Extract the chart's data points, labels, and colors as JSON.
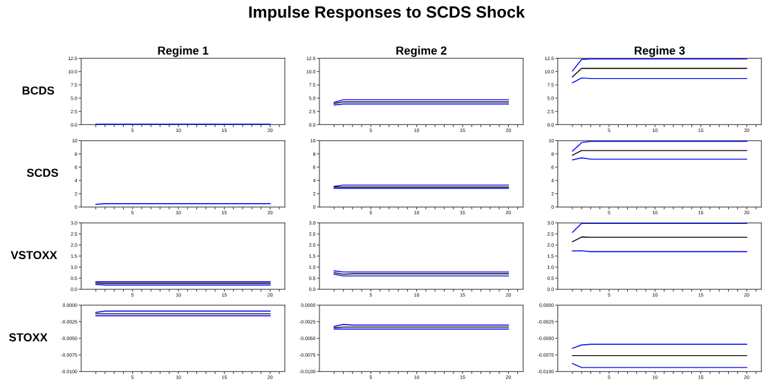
{
  "chart_data": [
    {
      "type": "line",
      "title": "Regime 1",
      "ylabel": "BCDS",
      "annotations": [
        "Impulse Responses to SCDS Shock"
      ],
      "x": [
        1,
        2,
        3,
        4,
        5,
        6,
        7,
        8,
        9,
        10,
        11,
        12,
        13,
        14,
        15,
        16,
        17,
        18,
        19,
        20
      ],
      "xlim": [
        -0.6,
        21.6
      ],
      "xticks": [
        {
          "value": 1,
          "label": null
        },
        {
          "value": 2,
          "label": null
        },
        {
          "value": 3,
          "label": null
        },
        {
          "value": 4,
          "label": null
        },
        5,
        {
          "value": 6,
          "label": null
        },
        {
          "value": 7,
          "label": null
        },
        {
          "value": 8,
          "label": null
        },
        {
          "value": 9,
          "label": null
        },
        10,
        {
          "value": 11,
          "label": null
        },
        {
          "value": 12,
          "label": null
        },
        {
          "value": 13,
          "label": null
        },
        {
          "value": 14,
          "label": null
        },
        15,
        {
          "value": 16,
          "label": null
        },
        {
          "value": 17,
          "label": null
        },
        {
          "value": 18,
          "label": null
        },
        {
          "value": 19,
          "label": null
        },
        20,
        {
          "value": 21,
          "label": null
        }
      ],
      "ylim": [
        0,
        12.5
      ],
      "yticks": [
        {
          "value": 0,
          "label": "0.0"
        },
        {
          "value": 2.5,
          "label": "2.5"
        },
        {
          "value": 5,
          "label": "5.0"
        },
        {
          "value": 7.5,
          "label": "7.5"
        },
        {
          "value": 10,
          "label": "10.0"
        },
        {
          "value": 12.5,
          "label": "12.5"
        }
      ],
      "line_style": "solid",
      "series": [
        {
          "color": "#0000ff",
          "values": [
            0.1,
            0.1,
            0.1,
            0.1,
            0.1,
            0.1,
            0.1,
            0.1,
            0.1,
            0.1,
            0.1,
            0.1,
            0.1,
            0.1,
            0.1,
            0.1,
            0.1,
            0.1,
            0.1,
            0.1
          ]
        }
      ]
    },
    {
      "type": "line",
      "title": "Regime 2",
      "x": [
        1,
        2,
        3,
        4,
        5,
        6,
        7,
        8,
        9,
        10,
        11,
        12,
        13,
        14,
        15,
        16,
        17,
        18,
        19,
        20
      ],
      "xlim": [
        -0.6,
        21.6
      ],
      "xticks": [
        {
          "value": 1,
          "label": null
        },
        {
          "value": 2,
          "label": null
        },
        {
          "value": 3,
          "label": null
        },
        {
          "value": 4,
          "label": null
        },
        5,
        {
          "value": 6,
          "label": null
        },
        {
          "value": 7,
          "label": null
        },
        {
          "value": 8,
          "label": null
        },
        {
          "value": 9,
          "label": null
        },
        10,
        {
          "value": 11,
          "label": null
        },
        {
          "value": 12,
          "label": null
        },
        {
          "value": 13,
          "label": null
        },
        {
          "value": 14,
          "label": null
        },
        15,
        {
          "value": 16,
          "label": null
        },
        {
          "value": 17,
          "label": null
        },
        {
          "value": 18,
          "label": null
        },
        {
          "value": 19,
          "label": null
        },
        20,
        {
          "value": 21,
          "label": null
        }
      ],
      "ylim": [
        0,
        12.5
      ],
      "yticks": [
        {
          "value": 0,
          "label": "0.0"
        },
        {
          "value": 2.5,
          "label": "2.5"
        },
        {
          "value": 5,
          "label": "5.0"
        },
        {
          "value": 7.5,
          "label": "7.5"
        },
        {
          "value": 10,
          "label": "10.0"
        },
        {
          "value": 12.5,
          "label": "12.5"
        }
      ],
      "line_style": "solid",
      "series": [
        {
          "color": "#0000ff",
          "values": [
            4.2,
            4.7,
            4.7,
            4.7,
            4.7,
            4.7,
            4.7,
            4.7,
            4.7,
            4.7,
            4.7,
            4.7,
            4.7,
            4.7,
            4.7,
            4.7,
            4.7,
            4.7,
            4.7,
            4.7
          ]
        },
        {
          "color": "#000000",
          "values": [
            4.0,
            4.3,
            4.3,
            4.3,
            4.3,
            4.3,
            4.3,
            4.3,
            4.3,
            4.3,
            4.3,
            4.3,
            4.3,
            4.3,
            4.3,
            4.3,
            4.3,
            4.3,
            4.3,
            4.3
          ]
        },
        {
          "color": "#0000ff",
          "values": [
            3.7,
            3.9,
            3.9,
            3.9,
            3.9,
            3.9,
            3.9,
            3.9,
            3.9,
            3.9,
            3.9,
            3.9,
            3.9,
            3.9,
            3.9,
            3.9,
            3.9,
            3.9,
            3.9,
            3.9
          ]
        }
      ]
    },
    {
      "type": "line",
      "title": "Regime 3",
      "x": [
        1,
        2,
        3,
        4,
        5,
        6,
        7,
        8,
        9,
        10,
        11,
        12,
        13,
        14,
        15,
        16,
        17,
        18,
        19,
        20
      ],
      "xlim": [
        -0.6,
        21.6
      ],
      "xticks": [
        {
          "value": 1,
          "label": null
        },
        {
          "value": 2,
          "label": null
        },
        {
          "value": 3,
          "label": null
        },
        {
          "value": 4,
          "label": null
        },
        5,
        {
          "value": 6,
          "label": null
        },
        {
          "value": 7,
          "label": null
        },
        {
          "value": 8,
          "label": null
        },
        {
          "value": 9,
          "label": null
        },
        10,
        {
          "value": 11,
          "label": null
        },
        {
          "value": 12,
          "label": null
        },
        {
          "value": 13,
          "label": null
        },
        {
          "value": 14,
          "label": null
        },
        15,
        {
          "value": 16,
          "label": null
        },
        {
          "value": 17,
          "label": null
        },
        {
          "value": 18,
          "label": null
        },
        {
          "value": 19,
          "label": null
        },
        20,
        {
          "value": 21,
          "label": null
        }
      ],
      "ylim": [
        0,
        12.5
      ],
      "yticks": [
        {
          "value": 0,
          "label": "0.0"
        },
        {
          "value": 2.5,
          "label": "2.5"
        },
        {
          "value": 5,
          "label": "5.0"
        },
        {
          "value": 7.5,
          "label": "7.5"
        },
        {
          "value": 10,
          "label": "10.0"
        },
        {
          "value": 12.5,
          "label": "12.5"
        }
      ],
      "line_style": "solid",
      "series": [
        {
          "color": "#0000ff",
          "values": [
            10.1,
            12.3,
            12.4,
            12.4,
            12.4,
            12.4,
            12.4,
            12.4,
            12.4,
            12.4,
            12.4,
            12.4,
            12.4,
            12.4,
            12.4,
            12.4,
            12.4,
            12.4,
            12.4,
            12.4
          ]
        },
        {
          "color": "#000000",
          "values": [
            9.0,
            10.6,
            10.6,
            10.6,
            10.6,
            10.6,
            10.6,
            10.6,
            10.6,
            10.6,
            10.6,
            10.6,
            10.6,
            10.6,
            10.6,
            10.6,
            10.6,
            10.6,
            10.6,
            10.6
          ]
        },
        {
          "color": "#0000ff",
          "values": [
            7.9,
            8.8,
            8.7,
            8.7,
            8.7,
            8.7,
            8.7,
            8.7,
            8.7,
            8.7,
            8.7,
            8.7,
            8.7,
            8.7,
            8.7,
            8.7,
            8.7,
            8.7,
            8.7,
            8.7
          ]
        }
      ]
    },
    {
      "type": "line",
      "ylabel": "SCDS",
      "x": [
        1,
        2,
        3,
        4,
        5,
        6,
        7,
        8,
        9,
        10,
        11,
        12,
        13,
        14,
        15,
        16,
        17,
        18,
        19,
        20
      ],
      "xlim": [
        -0.6,
        21.6
      ],
      "xticks": [
        {
          "value": 1,
          "label": null
        },
        {
          "value": 2,
          "label": null
        },
        {
          "value": 3,
          "label": null
        },
        {
          "value": 4,
          "label": null
        },
        5,
        {
          "value": 6,
          "label": null
        },
        {
          "value": 7,
          "label": null
        },
        {
          "value": 8,
          "label": null
        },
        {
          "value": 9,
          "label": null
        },
        10,
        {
          "value": 11,
          "label": null
        },
        {
          "value": 12,
          "label": null
        },
        {
          "value": 13,
          "label": null
        },
        {
          "value": 14,
          "label": null
        },
        15,
        {
          "value": 16,
          "label": null
        },
        {
          "value": 17,
          "label": null
        },
        {
          "value": 18,
          "label": null
        },
        {
          "value": 19,
          "label": null
        },
        20,
        {
          "value": 21,
          "label": null
        }
      ],
      "ylim": [
        0,
        10
      ],
      "yticks": [
        0,
        2,
        4,
        6,
        8,
        10
      ],
      "line_style": "solid",
      "series": [
        {
          "color": "#0000ff",
          "values": [
            0.4,
            0.5,
            0.5,
            0.5,
            0.5,
            0.5,
            0.5,
            0.5,
            0.5,
            0.5,
            0.5,
            0.5,
            0.5,
            0.5,
            0.5,
            0.5,
            0.5,
            0.5,
            0.5,
            0.5
          ]
        }
      ]
    },
    {
      "type": "line",
      "x": [
        1,
        2,
        3,
        4,
        5,
        6,
        7,
        8,
        9,
        10,
        11,
        12,
        13,
        14,
        15,
        16,
        17,
        18,
        19,
        20
      ],
      "xlim": [
        -0.6,
        21.6
      ],
      "xticks": [
        {
          "value": 1,
          "label": null
        },
        {
          "value": 2,
          "label": null
        },
        {
          "value": 3,
          "label": null
        },
        {
          "value": 4,
          "label": null
        },
        5,
        {
          "value": 6,
          "label": null
        },
        {
          "value": 7,
          "label": null
        },
        {
          "value": 8,
          "label": null
        },
        {
          "value": 9,
          "label": null
        },
        10,
        {
          "value": 11,
          "label": null
        },
        {
          "value": 12,
          "label": null
        },
        {
          "value": 13,
          "label": null
        },
        {
          "value": 14,
          "label": null
        },
        15,
        {
          "value": 16,
          "label": null
        },
        {
          "value": 17,
          "label": null
        },
        {
          "value": 18,
          "label": null
        },
        {
          "value": 19,
          "label": null
        },
        20,
        {
          "value": 21,
          "label": null
        }
      ],
      "ylim": [
        0,
        10
      ],
      "yticks": [
        0,
        2,
        4,
        6,
        8,
        10
      ],
      "line_style": "solid",
      "series": [
        {
          "color": "#0000ff",
          "values": [
            3.1,
            3.3,
            3.3,
            3.3,
            3.3,
            3.3,
            3.3,
            3.3,
            3.3,
            3.3,
            3.3,
            3.3,
            3.3,
            3.3,
            3.3,
            3.3,
            3.3,
            3.3,
            3.3,
            3.3
          ]
        },
        {
          "color": "#000000",
          "values": [
            3.0,
            3.0,
            3.0,
            3.0,
            3.0,
            3.0,
            3.0,
            3.0,
            3.0,
            3.0,
            3.0,
            3.0,
            3.0,
            3.0,
            3.0,
            3.0,
            3.0,
            3.0,
            3.0,
            3.0
          ]
        },
        {
          "color": "#0000ff",
          "values": [
            2.8,
            2.8,
            2.8,
            2.8,
            2.8,
            2.8,
            2.8,
            2.8,
            2.8,
            2.8,
            2.8,
            2.8,
            2.8,
            2.8,
            2.8,
            2.8,
            2.8,
            2.8,
            2.8,
            2.8
          ]
        }
      ]
    },
    {
      "type": "line",
      "x": [
        1,
        2,
        3,
        4,
        5,
        6,
        7,
        8,
        9,
        10,
        11,
        12,
        13,
        14,
        15,
        16,
        17,
        18,
        19,
        20
      ],
      "xlim": [
        -0.6,
        21.6
      ],
      "xticks": [
        {
          "value": 1,
          "label": null
        },
        {
          "value": 2,
          "label": null
        },
        {
          "value": 3,
          "label": null
        },
        {
          "value": 4,
          "label": null
        },
        5,
        {
          "value": 6,
          "label": null
        },
        {
          "value": 7,
          "label": null
        },
        {
          "value": 8,
          "label": null
        },
        {
          "value": 9,
          "label": null
        },
        10,
        {
          "value": 11,
          "label": null
        },
        {
          "value": 12,
          "label": null
        },
        {
          "value": 13,
          "label": null
        },
        {
          "value": 14,
          "label": null
        },
        15,
        {
          "value": 16,
          "label": null
        },
        {
          "value": 17,
          "label": null
        },
        {
          "value": 18,
          "label": null
        },
        {
          "value": 19,
          "label": null
        },
        20,
        {
          "value": 21,
          "label": null
        }
      ],
      "ylim": [
        0,
        10
      ],
      "yticks": [
        0,
        2,
        4,
        6,
        8,
        10
      ],
      "line_style": "solid",
      "series": [
        {
          "color": "#0000ff",
          "values": [
            8.4,
            9.7,
            9.9,
            9.9,
            9.9,
            9.9,
            9.9,
            9.9,
            9.9,
            9.9,
            9.9,
            9.9,
            9.9,
            9.9,
            9.9,
            9.9,
            9.9,
            9.9,
            9.9,
            9.9
          ]
        },
        {
          "color": "#000000",
          "values": [
            7.8,
            8.5,
            8.5,
            8.5,
            8.5,
            8.5,
            8.5,
            8.5,
            8.5,
            8.5,
            8.5,
            8.5,
            8.5,
            8.5,
            8.5,
            8.5,
            8.5,
            8.5,
            8.5,
            8.5
          ]
        },
        {
          "color": "#0000ff",
          "values": [
            7.1,
            7.4,
            7.2,
            7.2,
            7.2,
            7.2,
            7.2,
            7.2,
            7.2,
            7.2,
            7.2,
            7.2,
            7.2,
            7.2,
            7.2,
            7.2,
            7.2,
            7.2,
            7.2,
            7.2
          ]
        }
      ]
    },
    {
      "type": "line",
      "ylabel": "VSTOXX",
      "x": [
        1,
        2,
        3,
        4,
        5,
        6,
        7,
        8,
        9,
        10,
        11,
        12,
        13,
        14,
        15,
        16,
        17,
        18,
        19,
        20
      ],
      "xlim": [
        -0.6,
        21.6
      ],
      "xticks": [
        {
          "value": 1,
          "label": null
        },
        {
          "value": 2,
          "label": null
        },
        {
          "value": 3,
          "label": null
        },
        {
          "value": 4,
          "label": null
        },
        5,
        {
          "value": 6,
          "label": null
        },
        {
          "value": 7,
          "label": null
        },
        {
          "value": 8,
          "label": null
        },
        {
          "value": 9,
          "label": null
        },
        10,
        {
          "value": 11,
          "label": null
        },
        {
          "value": 12,
          "label": null
        },
        {
          "value": 13,
          "label": null
        },
        {
          "value": 14,
          "label": null
        },
        15,
        {
          "value": 16,
          "label": null
        },
        {
          "value": 17,
          "label": null
        },
        {
          "value": 18,
          "label": null
        },
        {
          "value": 19,
          "label": null
        },
        20,
        {
          "value": 21,
          "label": null
        }
      ],
      "ylim": [
        0,
        3
      ],
      "yticks": [
        {
          "value": 0,
          "label": "0.0"
        },
        {
          "value": 0.5,
          "label": "0.5"
        },
        {
          "value": 1,
          "label": "1.0"
        },
        {
          "value": 1.5,
          "label": "1.5"
        },
        {
          "value": 2,
          "label": "2.0"
        },
        {
          "value": 2.5,
          "label": "2.5"
        },
        {
          "value": 3,
          "label": "3.0"
        }
      ],
      "line_style": "solid",
      "series": [
        {
          "color": "#0000ff",
          "values": [
            0.34,
            0.34,
            0.34,
            0.34,
            0.34,
            0.34,
            0.34,
            0.34,
            0.34,
            0.34,
            0.34,
            0.34,
            0.34,
            0.34,
            0.34,
            0.34,
            0.34,
            0.34,
            0.34,
            0.34
          ]
        },
        {
          "color": "#000000",
          "values": [
            0.28,
            0.27,
            0.27,
            0.27,
            0.27,
            0.27,
            0.27,
            0.27,
            0.27,
            0.27,
            0.27,
            0.27,
            0.27,
            0.27,
            0.27,
            0.27,
            0.27,
            0.27,
            0.27,
            0.27
          ]
        },
        {
          "color": "#0000ff",
          "values": [
            0.22,
            0.19,
            0.19,
            0.19,
            0.19,
            0.19,
            0.19,
            0.19,
            0.19,
            0.19,
            0.19,
            0.19,
            0.19,
            0.19,
            0.19,
            0.19,
            0.19,
            0.19,
            0.19,
            0.19
          ]
        }
      ]
    },
    {
      "type": "line",
      "x": [
        1,
        2,
        3,
        4,
        5,
        6,
        7,
        8,
        9,
        10,
        11,
        12,
        13,
        14,
        15,
        16,
        17,
        18,
        19,
        20
      ],
      "xlim": [
        -0.6,
        21.6
      ],
      "xticks": [
        {
          "value": 1,
          "label": null
        },
        {
          "value": 2,
          "label": null
        },
        {
          "value": 3,
          "label": null
        },
        {
          "value": 4,
          "label": null
        },
        5,
        {
          "value": 6,
          "label": null
        },
        {
          "value": 7,
          "label": null
        },
        {
          "value": 8,
          "label": null
        },
        {
          "value": 9,
          "label": null
        },
        10,
        {
          "value": 11,
          "label": null
        },
        {
          "value": 12,
          "label": null
        },
        {
          "value": 13,
          "label": null
        },
        {
          "value": 14,
          "label": null
        },
        15,
        {
          "value": 16,
          "label": null
        },
        {
          "value": 17,
          "label": null
        },
        {
          "value": 18,
          "label": null
        },
        {
          "value": 19,
          "label": null
        },
        20,
        {
          "value": 21,
          "label": null
        }
      ],
      "ylim": [
        0,
        3
      ],
      "yticks": [
        {
          "value": 0,
          "label": "0.0"
        },
        {
          "value": 0.5,
          "label": "0.5"
        },
        {
          "value": 1,
          "label": "1.0"
        },
        {
          "value": 1.5,
          "label": "1.5"
        },
        {
          "value": 2,
          "label": "2.0"
        },
        {
          "value": 2.5,
          "label": "2.5"
        },
        {
          "value": 3,
          "label": "3.0"
        }
      ],
      "line_style": "solid",
      "series": [
        {
          "color": "#0000ff",
          "values": [
            0.83,
            0.78,
            0.78,
            0.78,
            0.78,
            0.78,
            0.78,
            0.78,
            0.78,
            0.78,
            0.78,
            0.78,
            0.78,
            0.78,
            0.78,
            0.78,
            0.78,
            0.78,
            0.78,
            0.78
          ]
        },
        {
          "color": "#000000",
          "values": [
            0.75,
            0.68,
            0.7,
            0.7,
            0.7,
            0.7,
            0.7,
            0.7,
            0.7,
            0.7,
            0.7,
            0.7,
            0.7,
            0.7,
            0.7,
            0.7,
            0.7,
            0.7,
            0.7,
            0.7
          ]
        },
        {
          "color": "#0000ff",
          "values": [
            0.68,
            0.6,
            0.6,
            0.6,
            0.6,
            0.6,
            0.6,
            0.6,
            0.6,
            0.6,
            0.6,
            0.6,
            0.6,
            0.6,
            0.6,
            0.6,
            0.6,
            0.6,
            0.6,
            0.6
          ]
        }
      ]
    },
    {
      "type": "line",
      "x": [
        1,
        2,
        3,
        4,
        5,
        6,
        7,
        8,
        9,
        10,
        11,
        12,
        13,
        14,
        15,
        16,
        17,
        18,
        19,
        20
      ],
      "xlim": [
        -0.6,
        21.6
      ],
      "xticks": [
        {
          "value": 1,
          "label": null
        },
        {
          "value": 2,
          "label": null
        },
        {
          "value": 3,
          "label": null
        },
        {
          "value": 4,
          "label": null
        },
        5,
        {
          "value": 6,
          "label": null
        },
        {
          "value": 7,
          "label": null
        },
        {
          "value": 8,
          "label": null
        },
        {
          "value": 9,
          "label": null
        },
        10,
        {
          "value": 11,
          "label": null
        },
        {
          "value": 12,
          "label": null
        },
        {
          "value": 13,
          "label": null
        },
        {
          "value": 14,
          "label": null
        },
        15,
        {
          "value": 16,
          "label": null
        },
        {
          "value": 17,
          "label": null
        },
        {
          "value": 18,
          "label": null
        },
        {
          "value": 19,
          "label": null
        },
        20,
        {
          "value": 21,
          "label": null
        }
      ],
      "ylim": [
        0,
        3
      ],
      "yticks": [
        {
          "value": 0,
          "label": "0.0"
        },
        {
          "value": 0.5,
          "label": "0.5"
        },
        {
          "value": 1,
          "label": "1.0"
        },
        {
          "value": 1.5,
          "label": "1.5"
        },
        {
          "value": 2,
          "label": "2.0"
        },
        {
          "value": 2.5,
          "label": "2.5"
        },
        {
          "value": 3,
          "label": "3.0"
        }
      ],
      "line_style": "solid",
      "series": [
        {
          "color": "#0000ff",
          "values": [
            2.57,
            2.98,
            2.98,
            2.98,
            2.98,
            2.98,
            2.98,
            2.98,
            2.98,
            2.98,
            2.98,
            2.98,
            2.98,
            2.98,
            2.98,
            2.98,
            2.98,
            2.98,
            2.98,
            2.98
          ]
        },
        {
          "color": "#000000",
          "values": [
            2.15,
            2.36,
            2.35,
            2.35,
            2.35,
            2.35,
            2.35,
            2.35,
            2.35,
            2.35,
            2.35,
            2.35,
            2.35,
            2.35,
            2.35,
            2.35,
            2.35,
            2.35,
            2.35,
            2.35
          ]
        },
        {
          "color": "#0000ff",
          "values": [
            1.73,
            1.74,
            1.7,
            1.7,
            1.7,
            1.7,
            1.7,
            1.7,
            1.7,
            1.7,
            1.7,
            1.7,
            1.7,
            1.7,
            1.7,
            1.7,
            1.7,
            1.7,
            1.7,
            1.7
          ]
        }
      ]
    },
    {
      "type": "line",
      "ylabel": "STOXX",
      "x": [
        1,
        2,
        3,
        4,
        5,
        6,
        7,
        8,
        9,
        10,
        11,
        12,
        13,
        14,
        15,
        16,
        17,
        18,
        19,
        20
      ],
      "xlim": [
        -0.6,
        21.6
      ],
      "xticks": [
        {
          "value": 1,
          "label": null
        },
        {
          "value": 2,
          "label": null
        },
        {
          "value": 3,
          "label": null
        },
        {
          "value": 4,
          "label": null
        },
        5,
        {
          "value": 6,
          "label": null
        },
        {
          "value": 7,
          "label": null
        },
        {
          "value": 8,
          "label": null
        },
        {
          "value": 9,
          "label": null
        },
        10,
        {
          "value": 11,
          "label": null
        },
        {
          "value": 12,
          "label": null
        },
        {
          "value": 13,
          "label": null
        },
        {
          "value": 14,
          "label": null
        },
        15,
        {
          "value": 16,
          "label": null
        },
        {
          "value": 17,
          "label": null
        },
        {
          "value": 18,
          "label": null
        },
        {
          "value": 19,
          "label": null
        },
        20,
        {
          "value": 21,
          "label": null
        }
      ],
      "ylim": [
        -0.01,
        0
      ],
      "yticks": [
        {
          "value": -0.01,
          "label": "-0.0100"
        },
        {
          "value": -0.0075,
          "label": "-0.0075"
        },
        {
          "value": -0.005,
          "label": "-0.0050"
        },
        {
          "value": -0.0025,
          "label": "-0.0025"
        },
        {
          "value": 0,
          "label": "0.0000"
        }
      ],
      "line_style": "solid",
      "series": [
        {
          "color": "#0000ff",
          "values": [
            -0.0011,
            -0.0009,
            -0.0009,
            -0.0009,
            -0.0009,
            -0.0009,
            -0.0009,
            -0.0009,
            -0.0009,
            -0.0009,
            -0.0009,
            -0.0009,
            -0.0009,
            -0.0009,
            -0.0009,
            -0.0009,
            -0.0009,
            -0.0009,
            -0.0009,
            -0.0009
          ]
        },
        {
          "color": "#000000",
          "values": [
            -0.0013,
            -0.0013,
            -0.0013,
            -0.0013,
            -0.0013,
            -0.0013,
            -0.0013,
            -0.0013,
            -0.0013,
            -0.0013,
            -0.0013,
            -0.0013,
            -0.0013,
            -0.0013,
            -0.0013,
            -0.0013,
            -0.0013,
            -0.0013,
            -0.0013,
            -0.0013
          ]
        },
        {
          "color": "#0000ff",
          "values": [
            -0.0016,
            -0.0016,
            -0.0016,
            -0.0016,
            -0.0016,
            -0.0016,
            -0.0016,
            -0.0016,
            -0.0016,
            -0.0016,
            -0.0016,
            -0.0016,
            -0.0016,
            -0.0016,
            -0.0016,
            -0.0016,
            -0.0016,
            -0.0016,
            -0.0016,
            -0.0016
          ]
        }
      ]
    },
    {
      "type": "line",
      "x": [
        1,
        2,
        3,
        4,
        5,
        6,
        7,
        8,
        9,
        10,
        11,
        12,
        13,
        14,
        15,
        16,
        17,
        18,
        19,
        20
      ],
      "xlim": [
        -0.6,
        21.6
      ],
      "xticks": [
        {
          "value": 1,
          "label": null
        },
        {
          "value": 2,
          "label": null
        },
        {
          "value": 3,
          "label": null
        },
        {
          "value": 4,
          "label": null
        },
        5,
        {
          "value": 6,
          "label": null
        },
        {
          "value": 7,
          "label": null
        },
        {
          "value": 8,
          "label": null
        },
        {
          "value": 9,
          "label": null
        },
        10,
        {
          "value": 11,
          "label": null
        },
        {
          "value": 12,
          "label": null
        },
        {
          "value": 13,
          "label": null
        },
        {
          "value": 14,
          "label": null
        },
        15,
        {
          "value": 16,
          "label": null
        },
        {
          "value": 17,
          "label": null
        },
        {
          "value": 18,
          "label": null
        },
        {
          "value": 19,
          "label": null
        },
        20,
        {
          "value": 21,
          "label": null
        }
      ],
      "ylim": [
        -0.01,
        0
      ],
      "yticks": [
        {
          "value": -0.01,
          "label": "-0.0100"
        },
        {
          "value": -0.0075,
          "label": "-0.0075"
        },
        {
          "value": -0.005,
          "label": "-0.0050"
        },
        {
          "value": -0.0025,
          "label": "-0.0025"
        },
        {
          "value": 0,
          "label": "0.0000"
        }
      ],
      "line_style": "solid",
      "series": [
        {
          "color": "#0000ff",
          "values": [
            -0.0032,
            -0.0029,
            -0.003,
            -0.003,
            -0.003,
            -0.003,
            -0.003,
            -0.003,
            -0.003,
            -0.003,
            -0.003,
            -0.003,
            -0.003,
            -0.003,
            -0.003,
            -0.003,
            -0.003,
            -0.003,
            -0.003,
            -0.003
          ]
        },
        {
          "color": "#000000",
          "values": [
            -0.0034,
            -0.0033,
            -0.0033,
            -0.0033,
            -0.0033,
            -0.0033,
            -0.0033,
            -0.0033,
            -0.0033,
            -0.0033,
            -0.0033,
            -0.0033,
            -0.0033,
            -0.0033,
            -0.0033,
            -0.0033,
            -0.0033,
            -0.0033,
            -0.0033,
            -0.0033
          ]
        },
        {
          "color": "#0000ff",
          "values": [
            -0.0036,
            -0.0036,
            -0.0036,
            -0.0036,
            -0.0036,
            -0.0036,
            -0.0036,
            -0.0036,
            -0.0036,
            -0.0036,
            -0.0036,
            -0.0036,
            -0.0036,
            -0.0036,
            -0.0036,
            -0.0036,
            -0.0036,
            -0.0036,
            -0.0036,
            -0.0036
          ]
        }
      ]
    },
    {
      "type": "line",
      "x": [
        1,
        2,
        3,
        4,
        5,
        6,
        7,
        8,
        9,
        10,
        11,
        12,
        13,
        14,
        15,
        16,
        17,
        18,
        19,
        20
      ],
      "xlim": [
        -0.6,
        21.6
      ],
      "xticks": [
        {
          "value": 1,
          "label": null
        },
        {
          "value": 2,
          "label": null
        },
        {
          "value": 3,
          "label": null
        },
        {
          "value": 4,
          "label": null
        },
        5,
        {
          "value": 6,
          "label": null
        },
        {
          "value": 7,
          "label": null
        },
        {
          "value": 8,
          "label": null
        },
        {
          "value": 9,
          "label": null
        },
        10,
        {
          "value": 11,
          "label": null
        },
        {
          "value": 12,
          "label": null
        },
        {
          "value": 13,
          "label": null
        },
        {
          "value": 14,
          "label": null
        },
        15,
        {
          "value": 16,
          "label": null
        },
        {
          "value": 17,
          "label": null
        },
        {
          "value": 18,
          "label": null
        },
        {
          "value": 19,
          "label": null
        },
        20,
        {
          "value": 21,
          "label": null
        }
      ],
      "ylim": [
        -0.01,
        0
      ],
      "yticks": [
        {
          "value": -0.01,
          "label": "-0.0100"
        },
        {
          "value": -0.0075,
          "label": "-0.0075"
        },
        {
          "value": -0.005,
          "label": "-0.0050"
        },
        {
          "value": -0.0025,
          "label": "-0.0025"
        },
        {
          "value": 0,
          "label": "0.0000"
        }
      ],
      "line_style": "solid",
      "series": [
        {
          "color": "#0000ff",
          "values": [
            -0.0065,
            -0.006,
            -0.0059,
            -0.0059,
            -0.0059,
            -0.0059,
            -0.0059,
            -0.0059,
            -0.0059,
            -0.0059,
            -0.0059,
            -0.0059,
            -0.0059,
            -0.0059,
            -0.0059,
            -0.0059,
            -0.0059,
            -0.0059,
            -0.0059,
            -0.0059
          ]
        },
        {
          "color": "#000000",
          "values": [
            -0.0076,
            -0.0076,
            -0.0076,
            -0.0076,
            -0.0076,
            -0.0076,
            -0.0076,
            -0.0076,
            -0.0076,
            -0.0076,
            -0.0076,
            -0.0076,
            -0.0076,
            -0.0076,
            -0.0076,
            -0.0076,
            -0.0076,
            -0.0076,
            -0.0076,
            -0.0076
          ]
        },
        {
          "color": "#0000ff",
          "values": [
            -0.0088,
            -0.0094,
            -0.0094,
            -0.0094,
            -0.0094,
            -0.0094,
            -0.0094,
            -0.0094,
            -0.0094,
            -0.0094,
            -0.0094,
            -0.0094,
            -0.0094,
            -0.0094,
            -0.0094,
            -0.0094,
            -0.0094,
            -0.0094,
            -0.0094,
            -0.0094
          ]
        }
      ]
    }
  ]
}
